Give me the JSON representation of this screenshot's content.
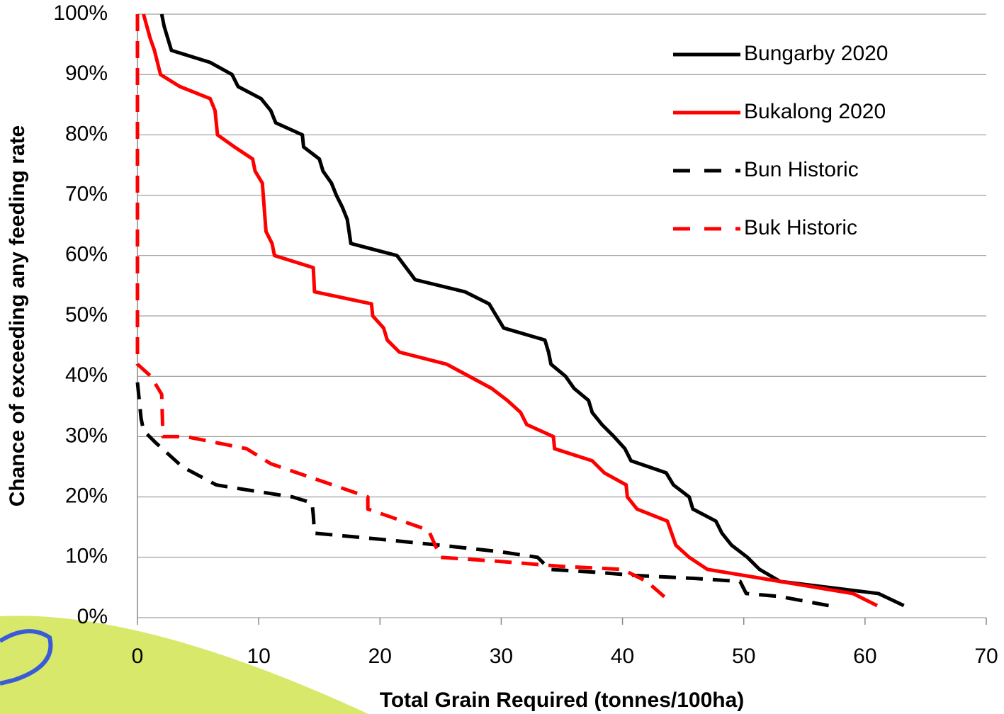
{
  "chart_data": {
    "type": "line",
    "x_label": "Total Grain Required (tonnes/100ha)",
    "y_label": "Chance of exceeding any feeding rate",
    "xlim": [
      0,
      70
    ],
    "xticks": [
      0,
      10,
      20,
      30,
      40,
      50,
      60,
      70
    ],
    "ylim": [
      0,
      100
    ],
    "yticks": [
      {
        "value": 0,
        "label": "0%"
      },
      {
        "value": 10,
        "label": "10%"
      },
      {
        "value": 20,
        "label": "20%"
      },
      {
        "value": 30,
        "label": "30%"
      },
      {
        "value": 40,
        "label": "40%"
      },
      {
        "value": 50,
        "label": "50%"
      },
      {
        "value": 60,
        "label": "60%"
      },
      {
        "value": 70,
        "label": "70%"
      },
      {
        "value": 80,
        "label": "80%"
      },
      {
        "value": 90,
        "label": "90%"
      },
      {
        "value": 100,
        "label": "100%"
      }
    ],
    "grid": true,
    "legend": "upper right",
    "series": [
      {
        "name": "Bungarby 2020",
        "color": "#000000",
        "linestyle": "solid",
        "x": [
          2,
          2.2,
          2.8,
          6,
          7.8,
          8.3,
          10.2,
          11,
          11.4,
          13.6,
          13.7,
          15,
          15.3,
          16,
          16.4,
          16.9,
          17.3,
          17.6,
          21.4,
          22.9,
          27,
          29,
          29.6,
          30.2,
          33.6,
          33.9,
          34.1,
          35.3,
          36,
          37.2,
          37.5,
          38.3,
          39.3,
          40.2,
          40.7,
          43.6,
          44.2,
          45.5,
          45.8,
          47.7,
          48.2,
          49,
          50.3,
          51.3,
          53,
          61.1,
          63.2
        ],
        "values": [
          100,
          98,
          94,
          92,
          90,
          88,
          86,
          84,
          82,
          80,
          78,
          76,
          74,
          72,
          70,
          68,
          66,
          62,
          60,
          56,
          54,
          52,
          50,
          48,
          46,
          44,
          42,
          40,
          38,
          36,
          34,
          32,
          30,
          28,
          26,
          24,
          22,
          20,
          18,
          16,
          14,
          12,
          10,
          8,
          6,
          4,
          2
        ]
      },
      {
        "name": "Bukalong 2020",
        "color": "#ff0000",
        "linestyle": "solid",
        "x": [
          0.5,
          1.05,
          1.4,
          1.9,
          3.5,
          6,
          6.4,
          6.6,
          8,
          9.5,
          9.7,
          10.3,
          10.6,
          11.1,
          11.3,
          14.5,
          14.6,
          19.3,
          19.4,
          20.3,
          20.6,
          21.6,
          25.5,
          29.2,
          30.5,
          31.6,
          32.1,
          34.3,
          34.4,
          37.5,
          38.5,
          40.3,
          40.4,
          41.2,
          43.7,
          44.4,
          45.5,
          47,
          53,
          59,
          61
        ],
        "values": [
          100,
          96,
          94,
          90,
          88,
          86,
          84,
          80,
          78,
          76,
          74,
          72,
          64,
          62,
          60,
          58,
          54,
          52,
          50,
          48,
          46,
          44,
          42,
          38,
          36,
          34,
          32,
          30,
          28,
          26,
          24,
          22,
          20,
          18,
          16,
          12,
          10,
          8,
          6,
          4,
          2
        ]
      },
      {
        "name": "Bun Historic",
        "color": "#000000",
        "linestyle": "dashed",
        "x": [
          0,
          0.3,
          0.5,
          1.5,
          3.7,
          6.5,
          8,
          12.8,
          14.4,
          14.5,
          14.6,
          20,
          25,
          30,
          33,
          34,
          38,
          41,
          46,
          49.7,
          50.2,
          53,
          57
        ],
        "values": [
          39,
          33,
          31,
          29,
          25,
          22,
          21.5,
          20,
          19,
          17,
          14,
          13,
          12,
          10.9,
          10,
          8,
          7.5,
          7,
          6.5,
          6,
          4,
          3.5,
          2
        ]
      },
      {
        "name": "Buk Historic",
        "color": "#ff0000",
        "linestyle": "dashed",
        "x": [
          0,
          0,
          1.1,
          2,
          2.1,
          4,
          9,
          11,
          19,
          19,
          24,
          25,
          30,
          35,
          40,
          42,
          44
        ],
        "values": [
          100,
          42,
          40,
          37,
          30,
          30,
          28,
          25.5,
          20,
          18,
          14.5,
          10,
          9.3,
          8.5,
          8,
          6,
          2.5
        ]
      }
    ]
  }
}
